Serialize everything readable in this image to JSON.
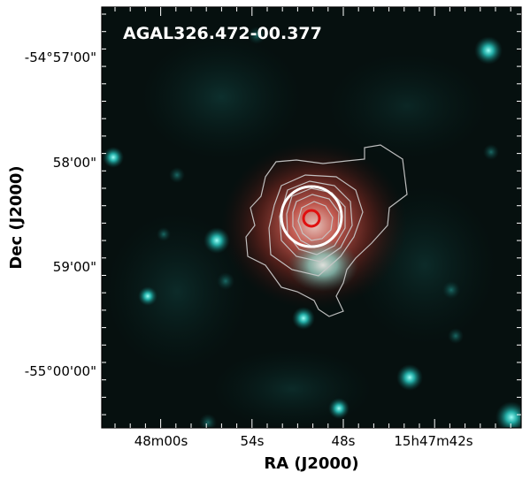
{
  "title": "AGAL326.472-00.377",
  "xlabel": "RA (J2000)",
  "ylabel": "Dec (J2000)",
  "x_ticks": [
    "48m00s",
    "54s",
    "48s",
    "15h47m42s"
  ],
  "y_ticks": [
    "-54°57'00\"",
    "58'00\"",
    "59'00\"",
    "-55°00'00\""
  ],
  "colors": {
    "background": "#000000",
    "stars": "#20c8c0",
    "dust_emission": "#c83228",
    "contours": "#c8c8c8",
    "aperture_outer": "#ffffff",
    "aperture_inner": "#e01010",
    "title_text": "#ffffff"
  }
}
